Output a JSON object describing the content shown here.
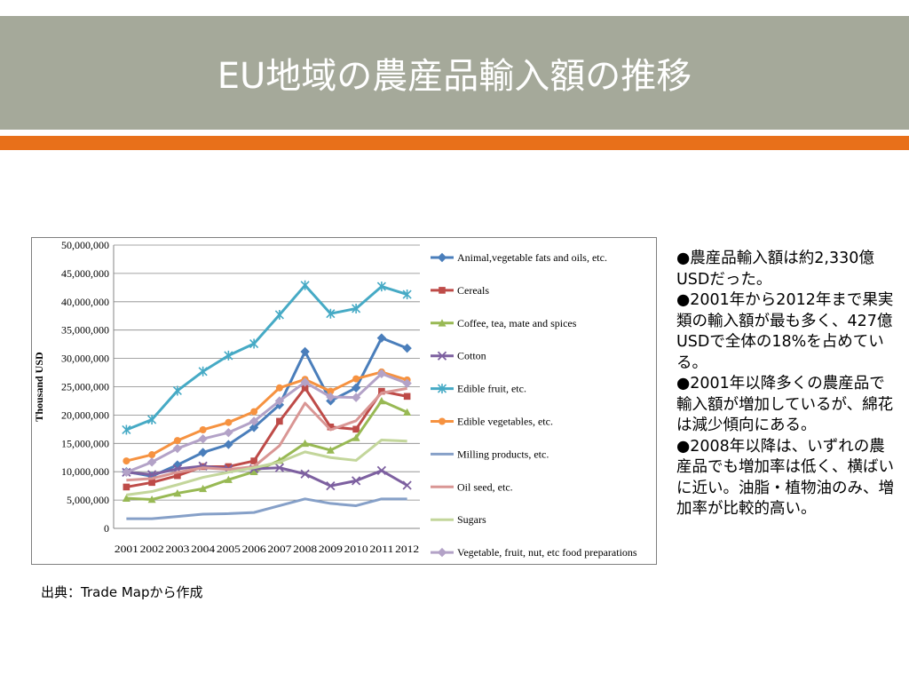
{
  "slide": {
    "title": "EU地域の農産品輸入額の推移",
    "source": "出典：Trade Mapから作成",
    "bullets": [
      "●農産品輸入額は約2,330億USDだった。",
      "●2001年から2012年まで果実類の輸入額が最も多く、427億USDで全体の18%を占めている。",
      "●2001年以降多くの農産品で輸入額が増加しているが、綿花は減少傾向にある。",
      "●2008年以降は、いずれの農産品でも増加率は低く、横ばいに近い。油脂・植物油のみ、増加率が比較的高い。"
    ],
    "colors": {
      "title_band": "#a5a99a",
      "accent_bar": "#e8701a"
    }
  },
  "chart_data": {
    "type": "line",
    "title": "",
    "xlabel": "",
    "ylabel": "Thousand USD",
    "ylim": [
      0,
      50000000
    ],
    "yticks": [
      0,
      5000000,
      10000000,
      15000000,
      20000000,
      25000000,
      30000000,
      35000000,
      40000000,
      45000000,
      50000000
    ],
    "ytick_labels": [
      "0",
      "5,000,000",
      "10,000,000",
      "15,000,000",
      "20,000,000",
      "25,000,000",
      "30,000,000",
      "35,000,000",
      "40,000,000",
      "45,000,000",
      "50,000,000"
    ],
    "grid": "horizontal",
    "legend": "right",
    "categories": [
      "2001",
      "2002",
      "2003",
      "2004",
      "2005",
      "2006",
      "2007",
      "2008",
      "2009",
      "2010",
      "2011",
      "2012"
    ],
    "series": [
      {
        "name": "Animal,vegetable fats and oils, etc.",
        "color": "#4a7ebb",
        "marker": "diamond",
        "values": [
          10000000,
          9200000,
          11200000,
          13400000,
          14800000,
          17800000,
          21800000,
          31200000,
          22500000,
          24800000,
          33600000,
          31800000
        ]
      },
      {
        "name": "Cereals",
        "color": "#be4b48",
        "marker": "square",
        "values": [
          7300000,
          8100000,
          9300000,
          10900000,
          10900000,
          11900000,
          18900000,
          24800000,
          17900000,
          17500000,
          24200000,
          23300000
        ]
      },
      {
        "name": "Coffee, tea, mate and spices",
        "color": "#98b954",
        "marker": "triangle",
        "values": [
          5300000,
          5100000,
          6200000,
          7000000,
          8600000,
          10000000,
          12000000,
          15000000,
          13800000,
          16000000,
          22500000,
          20500000
        ]
      },
      {
        "name": "Cotton",
        "color": "#7d60a0",
        "marker": "x",
        "values": [
          9900000,
          9500000,
          10500000,
          11000000,
          10500000,
          10500000,
          10700000,
          9600000,
          7500000,
          8400000,
          10200000,
          7600000
        ]
      },
      {
        "name": "Edible fruit, etc.",
        "color": "#46aac5",
        "marker": "star",
        "values": [
          17400000,
          19200000,
          24300000,
          27700000,
          30500000,
          32600000,
          37700000,
          42900000,
          37900000,
          38800000,
          42700000,
          41300000
        ]
      },
      {
        "name": "Edible vegetables, etc.",
        "color": "#f69240",
        "marker": "circle",
        "values": [
          11900000,
          13000000,
          15500000,
          17400000,
          18700000,
          20600000,
          24800000,
          26300000,
          24200000,
          26400000,
          27600000,
          26200000
        ]
      },
      {
        "name": "Milling products, etc.",
        "color": "#86a0c8",
        "marker": "none",
        "values": [
          1700000,
          1700000,
          2100000,
          2500000,
          2600000,
          2800000,
          4000000,
          5200000,
          4400000,
          4000000,
          5200000,
          5200000
        ]
      },
      {
        "name": "Oil seed, etc.",
        "color": "#d99694",
        "marker": "none",
        "values": [
          8500000,
          8800000,
          9900000,
          10700000,
          10400000,
          10900000,
          14600000,
          22100000,
          17400000,
          19000000,
          23900000,
          24700000
        ]
      },
      {
        "name": "Sugars",
        "color": "#c3d69b",
        "marker": "none",
        "values": [
          5900000,
          6500000,
          7700000,
          9000000,
          9900000,
          10700000,
          11700000,
          13500000,
          12500000,
          12000000,
          15600000,
          15400000
        ]
      },
      {
        "name": "Vegetable, fruit, nut, etc food preparations",
        "color": "#b3a2c7",
        "marker": "diamond",
        "values": [
          9900000,
          11700000,
          14100000,
          15800000,
          16900000,
          18900000,
          22500000,
          25800000,
          23200000,
          23100000,
          27300000,
          25600000
        ]
      }
    ]
  }
}
